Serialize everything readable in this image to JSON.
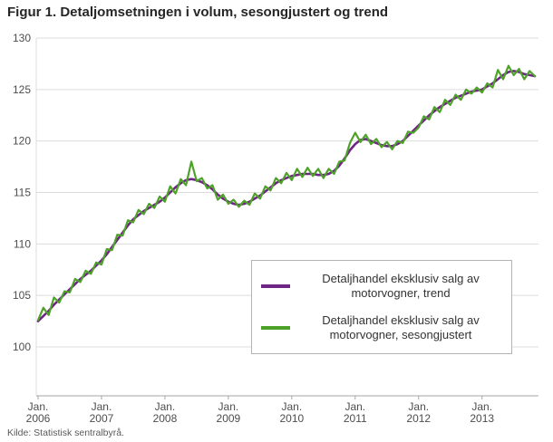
{
  "title": "Figur 1. Detaljomsetningen i volum, sesongjustert og trend",
  "source": "Kilde: Statistisk sentralbyrå.",
  "colors": {
    "trend": "#6e2585",
    "seasonal": "#4ea22a",
    "grid": "#dcdcdc",
    "axis": "#a6a6a6",
    "text": "#4d4d4d"
  },
  "chart_data": {
    "type": "line",
    "title": "Figur 1. Detaljomsetningen i volum, sesongjustert og trend",
    "xlabel": "",
    "ylabel": "",
    "ylim": [
      100,
      130
    ],
    "yticks": [
      100,
      105,
      110,
      115,
      120,
      125,
      130
    ],
    "grid": true,
    "legend_position": "center-right",
    "x_month_label": "Jan.",
    "x_years": [
      "2006",
      "2007",
      "2008",
      "2009",
      "2010",
      "2011",
      "2012",
      "2013"
    ],
    "months_per_year": 12,
    "series": [
      {
        "name": "Detaljhandel eksklusiv salg av motorvogner, trend",
        "color": "#6e2585",
        "values": [
          102.5,
          103.0,
          103.5,
          104.1,
          104.6,
          105.1,
          105.6,
          106.1,
          106.6,
          107.0,
          107.4,
          107.9,
          108.4,
          109.0,
          109.7,
          110.4,
          111.1,
          111.8,
          112.4,
          112.8,
          113.2,
          113.5,
          113.8,
          114.1,
          114.5,
          115.0,
          115.5,
          115.9,
          116.2,
          116.3,
          116.2,
          116.0,
          115.7,
          115.3,
          114.8,
          114.4,
          114.1,
          113.9,
          113.8,
          113.9,
          114.1,
          114.4,
          114.7,
          115.1,
          115.5,
          115.9,
          116.2,
          116.4,
          116.6,
          116.7,
          116.8,
          116.8,
          116.8,
          116.7,
          116.7,
          116.8,
          117.1,
          117.6,
          118.3,
          119.1,
          119.7,
          120.1,
          120.2,
          120.0,
          119.8,
          119.6,
          119.5,
          119.5,
          119.7,
          120.0,
          120.5,
          121.0,
          121.5,
          122.0,
          122.5,
          122.9,
          123.3,
          123.6,
          123.9,
          124.2,
          124.4,
          124.6,
          124.8,
          124.9,
          125.0,
          125.3,
          125.6,
          126.0,
          126.4,
          126.7,
          126.8,
          126.7,
          126.5,
          126.4,
          126.3
        ]
      },
      {
        "name": "Detaljhandel eksklusiv salg av motorvogner, sesongjustert",
        "color": "#4ea22a",
        "values": [
          102.6,
          103.8,
          103.1,
          104.8,
          104.3,
          105.4,
          105.3,
          106.6,
          106.3,
          107.4,
          107.1,
          108.2,
          108.0,
          109.5,
          109.4,
          110.9,
          110.8,
          112.3,
          112.1,
          113.3,
          112.9,
          113.9,
          113.5,
          114.6,
          114.1,
          115.6,
          114.9,
          116.3,
          115.7,
          118.0,
          116.1,
          116.4,
          115.4,
          115.7,
          114.3,
          114.8,
          113.9,
          114.3,
          113.6,
          114.2,
          113.8,
          114.9,
          114.4,
          115.6,
          115.2,
          116.4,
          115.9,
          116.9,
          116.2,
          117.3,
          116.5,
          117.4,
          116.6,
          117.3,
          116.4,
          117.3,
          116.8,
          118.0,
          118.1,
          119.8,
          120.8,
          119.9,
          120.6,
          119.7,
          120.2,
          119.4,
          119.9,
          119.2,
          120.0,
          119.8,
          120.9,
          120.8,
          121.3,
          122.4,
          122.1,
          123.3,
          122.8,
          124.0,
          123.5,
          124.5,
          124.0,
          125.0,
          124.6,
          125.2,
          124.7,
          125.6,
          125.2,
          126.9,
          126.0,
          127.3,
          126.4,
          127.0,
          126.0,
          126.8,
          126.3
        ]
      }
    ]
  }
}
